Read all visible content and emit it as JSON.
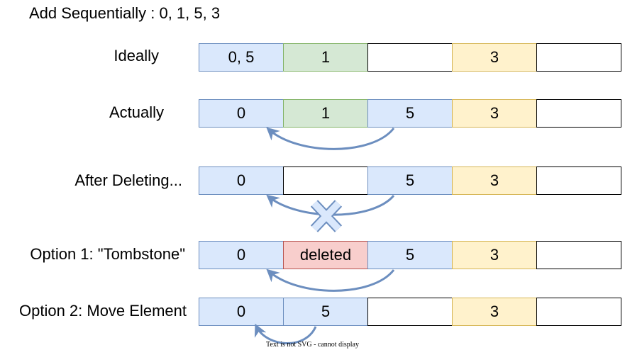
{
  "title": "Add Sequentially : 0, 1, 5, 3",
  "rows": [
    {
      "label": "Ideally",
      "cells": [
        "0, 5",
        "1",
        "",
        "3",
        ""
      ],
      "colors": [
        "blue",
        "green",
        "white",
        "yellow",
        "white"
      ]
    },
    {
      "label": "Actually",
      "cells": [
        "0",
        "1",
        "5",
        "3",
        ""
      ],
      "colors": [
        "blue",
        "green",
        "blue",
        "yellow",
        "white"
      ]
    },
    {
      "label": "After Deleting...",
      "cells": [
        "0",
        "",
        "5",
        "3",
        ""
      ],
      "colors": [
        "blue",
        "white",
        "blue",
        "yellow",
        "white"
      ]
    },
    {
      "label": "Option 1: \"Tombstone\"",
      "cells": [
        "0",
        "deleted",
        "5",
        "3",
        ""
      ],
      "colors": [
        "blue",
        "red",
        "blue",
        "yellow",
        "white"
      ]
    },
    {
      "label": "Option 2: Move Element",
      "cells": [
        "0",
        "5",
        "",
        "3",
        ""
      ],
      "colors": [
        "blue",
        "blue",
        "white",
        "yellow",
        "white"
      ]
    }
  ],
  "arrow_color": "#6c8ebf",
  "footnote": "Text is not SVG - cannot display"
}
